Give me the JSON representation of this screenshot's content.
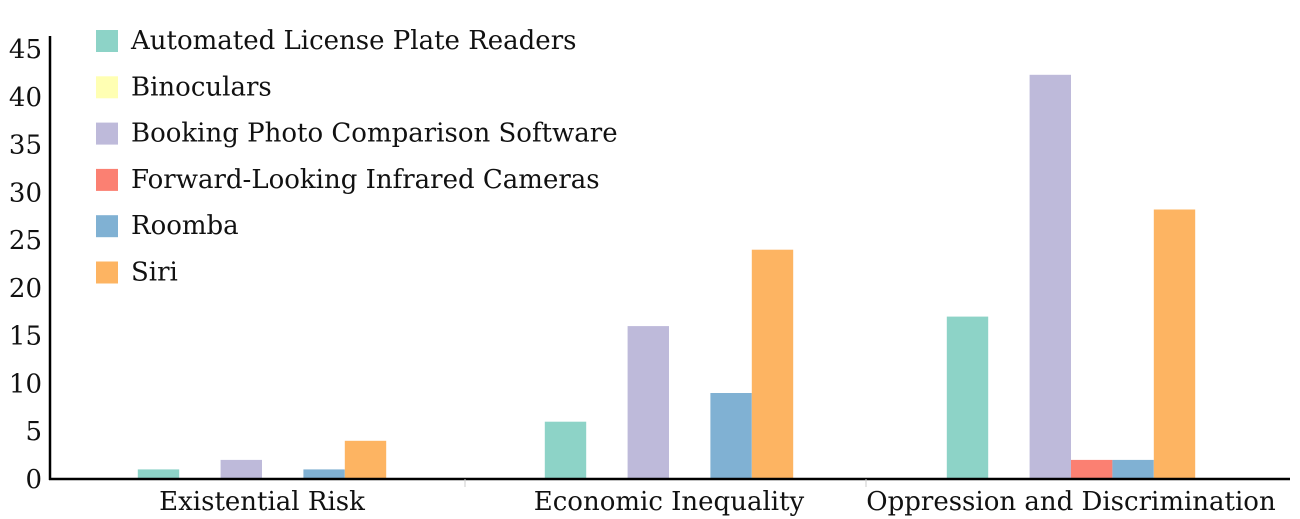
{
  "chart_data": {
    "type": "bar",
    "categories": [
      "Existential Risk",
      "Economic Inequality",
      "Oppression and Discrimination"
    ],
    "series": [
      {
        "name": "Automated License Plate Readers",
        "color": "#8dd3c7",
        "values": [
          1,
          6,
          17
        ]
      },
      {
        "name": "Binoculars",
        "color": "#ffffb3",
        "values": [
          0,
          0,
          0
        ]
      },
      {
        "name": "Booking Photo Comparison Software",
        "color": "#bebada",
        "values": [
          2,
          16,
          42.3
        ]
      },
      {
        "name": "Forward-Looking Infrared Cameras",
        "color": "#fb8072",
        "values": [
          0,
          0,
          2
        ]
      },
      {
        "name": "Roomba",
        "color": "#80b1d3",
        "values": [
          1,
          9,
          2
        ]
      },
      {
        "name": "Siri",
        "color": "#fdb462",
        "values": [
          4,
          24,
          28.2
        ]
      }
    ],
    "yticks": [
      "0",
      "5",
      "10",
      "15",
      "20",
      "25",
      "30",
      "35",
      "40",
      "45"
    ],
    "ylim": [
      0,
      45
    ],
    "grid": false,
    "legend_position": "top-left"
  }
}
